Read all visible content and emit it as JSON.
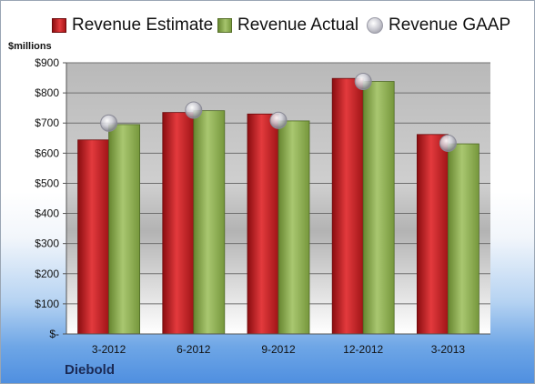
{
  "chart_data": {
    "type": "bar",
    "company": "Diebold",
    "y_unit_label": "$millions",
    "categories": [
      "3-2012",
      "6-2012",
      "9-2012",
      "12-2012",
      "3-2013"
    ],
    "series": [
      {
        "name": "Revenue Estimate",
        "values": [
          644,
          735,
          730,
          848,
          662
        ],
        "color": "#c8191c"
      },
      {
        "name": "Revenue Actual",
        "values": [
          695,
          741,
          707,
          838,
          631
        ],
        "color": "#8fae55"
      }
    ],
    "markers": {
      "name": "Revenue GAAP",
      "values": [
        700,
        743,
        709,
        838,
        633
      ]
    },
    "ylim": [
      0,
      900
    ],
    "yticks": [
      0,
      100,
      200,
      300,
      400,
      500,
      600,
      700,
      800,
      900
    ],
    "ytick_labels": [
      "$-",
      "$100",
      "$200",
      "$300",
      "$400",
      "$500",
      "$600",
      "$700",
      "$800",
      "$900"
    ],
    "grid": true,
    "legend_position": "top"
  }
}
